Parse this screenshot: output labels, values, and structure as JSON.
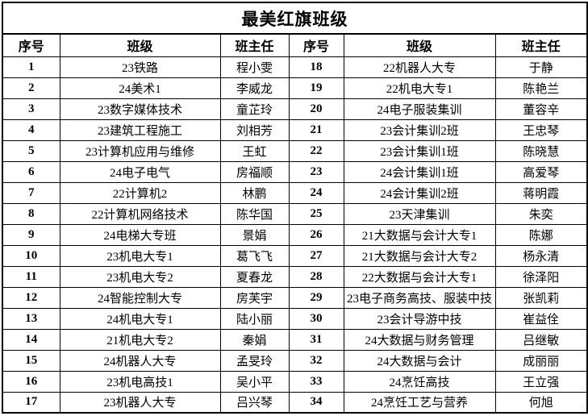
{
  "title": "最美红旗班级",
  "columns": [
    "序号",
    "班级",
    "班主任",
    "序号",
    "班级",
    "班主任"
  ],
  "rows": [
    [
      "1",
      "23铁路",
      "程小雯",
      "18",
      "22机器人大专",
      "于静"
    ],
    [
      "2",
      "24美术1",
      "李威龙",
      "19",
      "22机电大专1",
      "陈艳兰"
    ],
    [
      "3",
      "23数字媒体技术",
      "童芷玲",
      "20",
      "24电子服装集训",
      "董容辛"
    ],
    [
      "4",
      "23建筑工程施工",
      "刘相芳",
      "21",
      "23会计集训2班",
      "王忠琴"
    ],
    [
      "5",
      "23计算机应用与维修",
      "王虹",
      "22",
      "23会计集训1班",
      "陈晓慧"
    ],
    [
      "6",
      "24电子电气",
      "房福顺",
      "23",
      "24会计集训1班",
      "高爱琴"
    ],
    [
      "7",
      "22计算机2",
      "林鹏",
      "24",
      "24会计集训2班",
      "蒋明霞"
    ],
    [
      "8",
      "22计算机网络技术",
      "陈华国",
      "25",
      "23天津集训",
      "朱奕"
    ],
    [
      "9",
      "24电梯大专班",
      "景娟",
      "26",
      "21大数据与会计大专1",
      "陈娜"
    ],
    [
      "10",
      "23机电大专1",
      "葛飞飞",
      "27",
      "21大数据与会计大专2",
      "杨永清"
    ],
    [
      "11",
      "23机电大专2",
      "夏春龙",
      "28",
      "22大数据与会计大专1",
      "徐泽阳"
    ],
    [
      "12",
      "24智能控制大专",
      "房芙宇",
      "29",
      "23电子商务高技、服装中技",
      "张凯莉"
    ],
    [
      "13",
      "24机电大专1",
      "陆小丽",
      "30",
      "23会计导游中技",
      "崔益佺"
    ],
    [
      "14",
      "21机电大专2",
      "秦娟",
      "31",
      "24大数据与财务管理",
      "吕继敏"
    ],
    [
      "15",
      "24机器人大专",
      "孟旻玲",
      "32",
      "24大数据与会计",
      "成丽丽"
    ],
    [
      "16",
      "23机电高技1",
      "吴小平",
      "33",
      "24烹饪高技",
      "王立强"
    ],
    [
      "17",
      "23机器人大专",
      "吕兴琴",
      "34",
      "24烹饪工艺与营养",
      "何旭"
    ]
  ],
  "colors": {
    "border": "#000000",
    "text": "#000000",
    "background": "#ffffff"
  }
}
